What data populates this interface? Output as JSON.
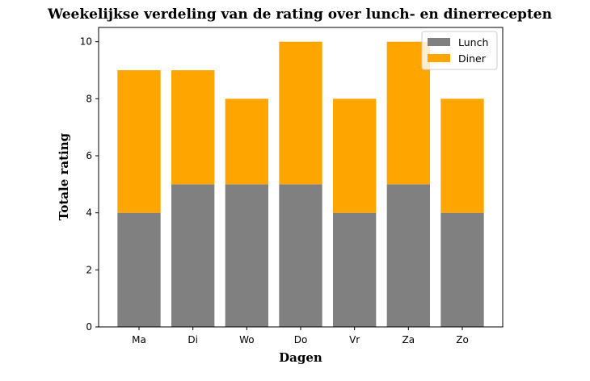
{
  "chart_data": {
    "type": "bar",
    "stacked": true,
    "title": "Weekelijkse verdeling van de rating over lunch- en dinerrecepten",
    "xlabel": "Dagen",
    "ylabel": "Totale rating",
    "categories": [
      "Ma",
      "Di",
      "Wo",
      "Do",
      "Vr",
      "Za",
      "Zo"
    ],
    "series": [
      {
        "name": "Lunch",
        "color": "#808080",
        "values": [
          4,
          5,
          5,
          5,
          4,
          5,
          4
        ]
      },
      {
        "name": "Diner",
        "color": "#ffa500",
        "values": [
          5,
          4,
          3,
          5,
          4,
          5,
          4
        ]
      }
    ],
    "ylim": [
      0,
      10.5
    ],
    "yticks": [
      0,
      2,
      4,
      6,
      8,
      10
    ],
    "legend_position": "top-right",
    "grid": false
  }
}
